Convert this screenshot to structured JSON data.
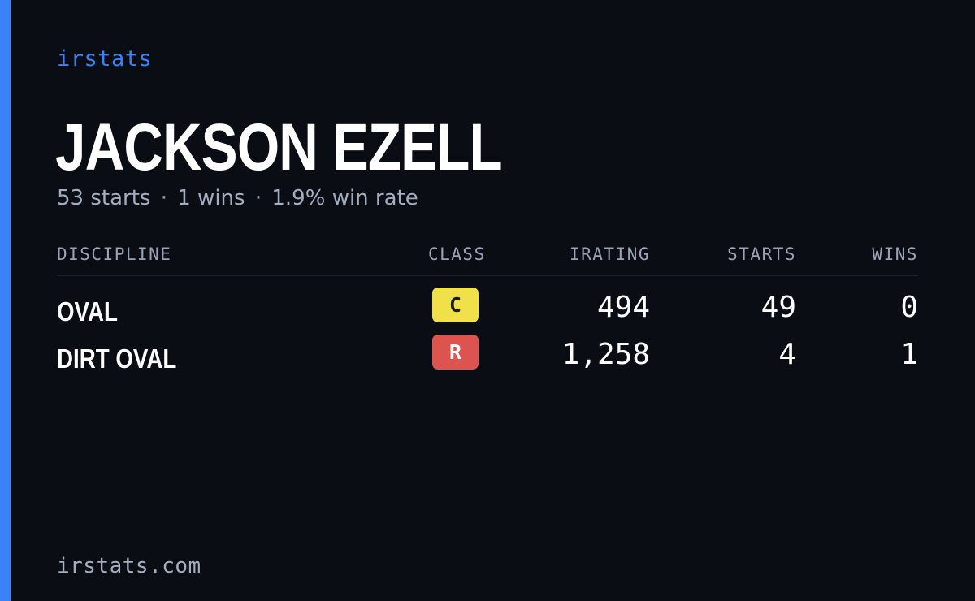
{
  "brand": "irstats",
  "player": {
    "name": "JACKSON EZELL"
  },
  "summary": {
    "starts": "53 starts",
    "wins": "1 wins",
    "win_rate": "1.9% win rate",
    "separator": "·"
  },
  "table": {
    "headers": {
      "discipline": "DISCIPLINE",
      "class": "CLASS",
      "irating": "IRATING",
      "starts": "STARTS",
      "wins": "WINS"
    },
    "rows": [
      {
        "discipline": "OVAL",
        "class": "C",
        "class_bg": "#f0e04a",
        "class_fg": "#1a1a1a",
        "irating": "494",
        "starts": "49",
        "wins": "0"
      },
      {
        "discipline": "DIRT OVAL",
        "class": "R",
        "class_bg": "#dc5450",
        "class_fg": "#ffffff",
        "irating": "1,258",
        "starts": "4",
        "wins": "1"
      }
    ]
  },
  "footer": "irstats.com",
  "colors": {
    "background": "#0a0d14",
    "accent": "#3b82f6"
  }
}
